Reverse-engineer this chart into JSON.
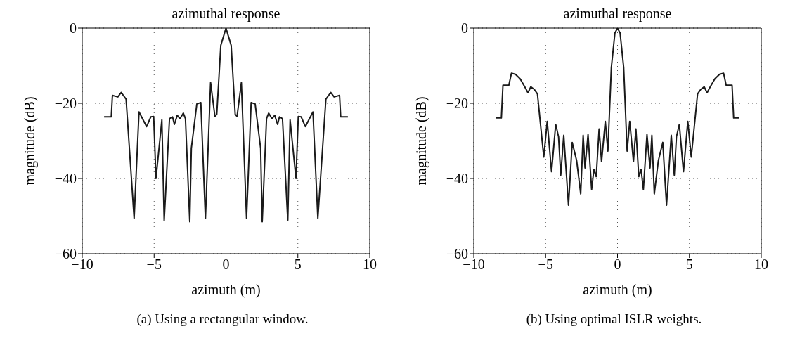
{
  "chart_data": [
    {
      "type": "line",
      "title": "azimuthal response",
      "xlabel": "azimuth (m)",
      "ylabel": "magnitude (dB)",
      "annotations": [
        "(a) Using a rectangular window."
      ],
      "color": "#1a1a1a",
      "xlim": [
        -10,
        10
      ],
      "ylim": [
        -60,
        0
      ],
      "xticks": [
        -10,
        -5,
        0,
        5,
        10
      ],
      "yticks": [
        -60,
        -40,
        -20,
        0
      ],
      "grid": true,
      "x": [
        -8.48,
        -7.98,
        -7.9,
        -7.52,
        -7.29,
        -6.95,
        -6.39,
        -6.05,
        -5.52,
        -5.23,
        -5.03,
        -4.87,
        -4.46,
        -4.3,
        -3.93,
        -3.72,
        -3.59,
        -3.39,
        -3.2,
        -2.97,
        -2.82,
        -2.52,
        -2.41,
        -2.03,
        -1.75,
        -1.43,
        -1.07,
        -0.77,
        -0.64,
        -0.36,
        0,
        0.36,
        0.64,
        0.77,
        1.07,
        1.43,
        1.75,
        2.03,
        2.41,
        2.52,
        2.82,
        2.97,
        3.2,
        3.39,
        3.59,
        3.72,
        3.93,
        4.3,
        4.46,
        4.87,
        5.03,
        5.23,
        5.52,
        6.05,
        6.39,
        6.95,
        7.29,
        7.52,
        7.9,
        7.98,
        8.48
      ],
      "values": [
        -23.6,
        -23.6,
        -17.9,
        -18.3,
        -17.1,
        -18.9,
        -50.6,
        -22.3,
        -26.2,
        -23.6,
        -23.5,
        -40,
        -24.4,
        -51.2,
        -24.1,
        -23.6,
        -25.6,
        -23.2,
        -24.1,
        -22.6,
        -24.1,
        -51.5,
        -32,
        -20.2,
        -19.8,
        -50.6,
        -14.5,
        -23.5,
        -22.9,
        -4.6,
        0,
        -4.6,
        -22.9,
        -23.5,
        -14.5,
        -50.6,
        -19.8,
        -20.2,
        -32,
        -51.5,
        -24.1,
        -22.6,
        -24.1,
        -23.2,
        -25.6,
        -23.6,
        -24.1,
        -51.2,
        -24.4,
        -40,
        -23.5,
        -23.6,
        -26.2,
        -22.3,
        -50.6,
        -18.9,
        -17.1,
        -18.3,
        -17.9,
        -23.6,
        -23.6
      ]
    },
    {
      "type": "line",
      "title": "azimuthal response",
      "xlabel": "azimuth (m)",
      "ylabel": "magnitude (dB)",
      "annotations": [
        "(b) Using optimal ISLR weights."
      ],
      "color": "#1a1a1a",
      "xlim": [
        -10,
        10
      ],
      "ylim": [
        -60,
        0
      ],
      "xticks": [
        -10,
        -5,
        0,
        5,
        10
      ],
      "yticks": [
        -60,
        -40,
        -20,
        0
      ],
      "grid": true,
      "x": [
        -8.46,
        -8.08,
        -7.97,
        -7.56,
        -7.38,
        -7.1,
        -6.77,
        -6.44,
        -6.23,
        -6.03,
        -5.79,
        -5.57,
        -5.13,
        -4.89,
        -4.59,
        -4.3,
        -4.1,
        -3.95,
        -3.74,
        -3.41,
        -3.15,
        -2.84,
        -2.56,
        -2.39,
        -2.26,
        -2.05,
        -1.8,
        -1.64,
        -1.48,
        -1.28,
        -1.11,
        -0.85,
        -0.67,
        -0.43,
        -0.18,
        0,
        0.18,
        0.43,
        0.67,
        0.85,
        1.11,
        1.28,
        1.48,
        1.64,
        1.8,
        2.05,
        2.26,
        2.39,
        2.56,
        2.84,
        3.15,
        3.41,
        3.74,
        3.95,
        4.1,
        4.3,
        4.59,
        4.89,
        5.13,
        5.57,
        5.79,
        6.03,
        6.23,
        6.44,
        6.77,
        7.1,
        7.38,
        7.56,
        7.97,
        8.08,
        8.46
      ],
      "values": [
        -23.9,
        -23.9,
        -15.2,
        -15.2,
        -12,
        -12.3,
        -13.5,
        -15.7,
        -17.2,
        -15.6,
        -16.3,
        -17.5,
        -34.3,
        -24.8,
        -38.2,
        -25.6,
        -28.9,
        -39.1,
        -28.5,
        -47.1,
        -30.4,
        -35.3,
        -44.1,
        -28.5,
        -37.2,
        -28.3,
        -42.9,
        -37.6,
        -39.5,
        -26.8,
        -35.5,
        -24.8,
        -32.7,
        -10.5,
        -1.3,
        0,
        -1.3,
        -10.5,
        -32.7,
        -24.8,
        -35.5,
        -26.8,
        -39.5,
        -37.6,
        -42.9,
        -28.3,
        -37.2,
        -28.5,
        -44.1,
        -35.3,
        -30.4,
        -47.1,
        -28.5,
        -39.1,
        -28.9,
        -25.6,
        -38.2,
        -24.8,
        -34.3,
        -17.5,
        -16.3,
        -15.6,
        -17.2,
        -15.7,
        -13.5,
        -12.3,
        -12,
        -15.2,
        -15.2,
        -23.9,
        -23.9
      ]
    }
  ]
}
